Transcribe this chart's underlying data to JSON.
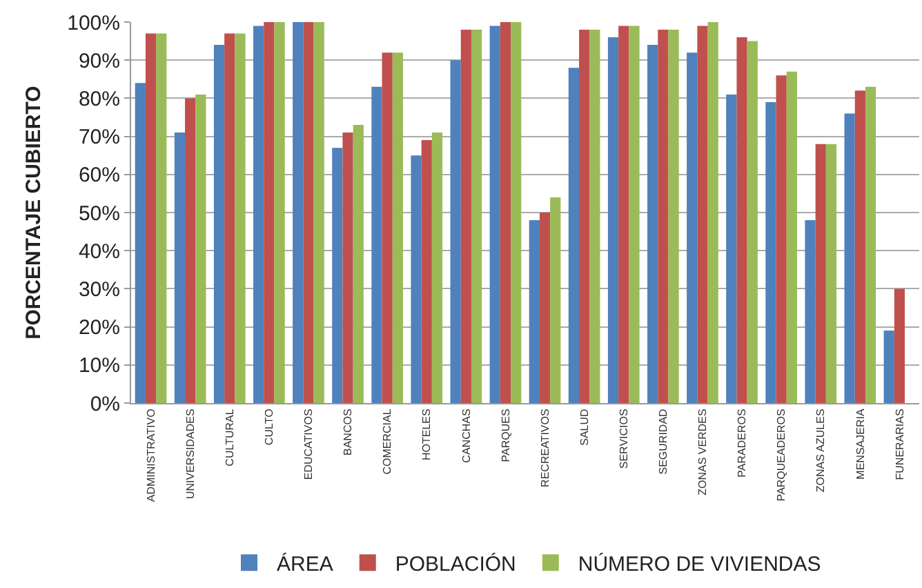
{
  "chart_data": {
    "type": "bar",
    "ylabel": "PORCENTAJE CUBIERTO",
    "categories": [
      "ADMINISTRATIVO",
      "UNIVERSIDADES",
      "CULTURAL",
      "CULTO",
      "EDUCATIVOS",
      "BANCOS",
      "COMERCIAL",
      "HOTELES",
      "CANCHAS",
      "PARQUES",
      "RECREATIVOS",
      "SALUD",
      "SERVICIOS",
      "SEGURIDAD",
      "ZONAS VERDES",
      "PARADEROS",
      "PARQUEADEROS",
      "ZONAS AZULES",
      "MENSAJERIA",
      "FUNERARIAS"
    ],
    "series": [
      {
        "name": "ÁREA",
        "color": "#4f81bd",
        "values": [
          84,
          71,
          94,
          99,
          100,
          67,
          83,
          65,
          90,
          99,
          48,
          88,
          96,
          94,
          92,
          81,
          79,
          48,
          76,
          19
        ]
      },
      {
        "name": "POBLACIÓN",
        "color": "#c0504d",
        "values": [
          97,
          80,
          97,
          100,
          100,
          71,
          92,
          69,
          98,
          100,
          50,
          98,
          99,
          98,
          99,
          96,
          86,
          68,
          82,
          30
        ]
      },
      {
        "name": "NÚMERO DE VIVIENDAS",
        "color": "#9bbb59",
        "values": [
          97,
          81,
          97,
          100,
          100,
          73,
          92,
          71,
          98,
          100,
          54,
          98,
          99,
          98,
          100,
          95,
          87,
          68,
          83,
          null
        ]
      }
    ],
    "ylim": [
      0,
      100
    ],
    "yticks": [
      {
        "value": 0,
        "label": "0%"
      },
      {
        "value": 10,
        "label": "10%"
      },
      {
        "value": 20,
        "label": "20%"
      },
      {
        "value": 30,
        "label": "30%"
      },
      {
        "value": 40,
        "label": "40%"
      },
      {
        "value": 50,
        "label": "50%"
      },
      {
        "value": 60,
        "label": "60%"
      },
      {
        "value": 70,
        "label": "70%"
      },
      {
        "value": 80,
        "label": "80%"
      },
      {
        "value": 90,
        "label": "90%"
      },
      {
        "value": 100,
        "label": "100%"
      }
    ],
    "grid": "y",
    "legend": "bottom"
  }
}
